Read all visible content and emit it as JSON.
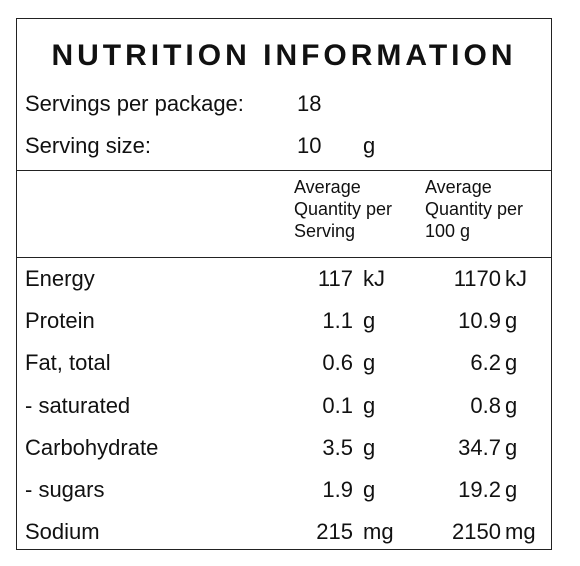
{
  "title": "NUTRITION INFORMATION",
  "servings_per_package": {
    "label": "Servings per package:",
    "value": "18"
  },
  "serving_size": {
    "label": "Serving size:",
    "value": "10",
    "unit": "g"
  },
  "columns": {
    "per_serving": [
      "Average",
      "Quantity per",
      "Serving"
    ],
    "per_100g": [
      "Average",
      "Quantity per",
      "100 g"
    ]
  },
  "rows": [
    {
      "name": "Energy",
      "per_serving": "117",
      "per_serving_unit": "kJ",
      "per_100g": "1170",
      "per_100g_unit": "kJ"
    },
    {
      "name": "Protein",
      "per_serving": "1.1",
      "per_serving_unit": "g",
      "per_100g": "10.9",
      "per_100g_unit": "g"
    },
    {
      "name": "Fat, total",
      "per_serving": "0.6",
      "per_serving_unit": "g",
      "per_100g": "6.2",
      "per_100g_unit": "g"
    },
    {
      "name": "- saturated",
      "per_serving": "0.1",
      "per_serving_unit": "g",
      "per_100g": "0.8",
      "per_100g_unit": "g"
    },
    {
      "name": "Carbohydrate",
      "per_serving": "3.5",
      "per_serving_unit": "g",
      "per_100g": "34.7",
      "per_100g_unit": "g"
    },
    {
      "name": "- sugars",
      "per_serving": "1.9",
      "per_serving_unit": "g",
      "per_100g": "19.2",
      "per_100g_unit": "g"
    },
    {
      "name": "Sodium",
      "per_serving": "215",
      "per_serving_unit": "mg",
      "per_100g": "2150",
      "per_100g_unit": "mg"
    }
  ]
}
